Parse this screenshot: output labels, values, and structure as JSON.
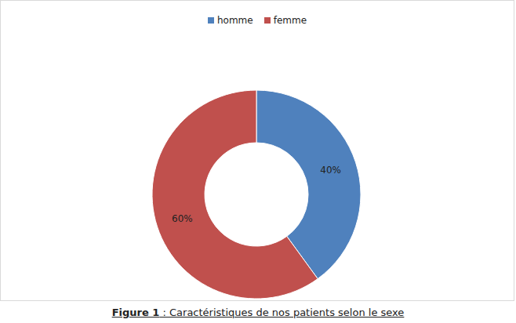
{
  "chart_data": {
    "type": "pie",
    "title": "Figure 1 : Caractéristiques de nos patients selon le sexe",
    "categories": [
      "homme",
      "femme"
    ],
    "values": [
      40,
      60
    ],
    "value_labels": [
      "40%",
      "60%"
    ],
    "colors": [
      "#4f81bd",
      "#c0504d"
    ],
    "data_labels": true,
    "legend": "top"
  }
}
